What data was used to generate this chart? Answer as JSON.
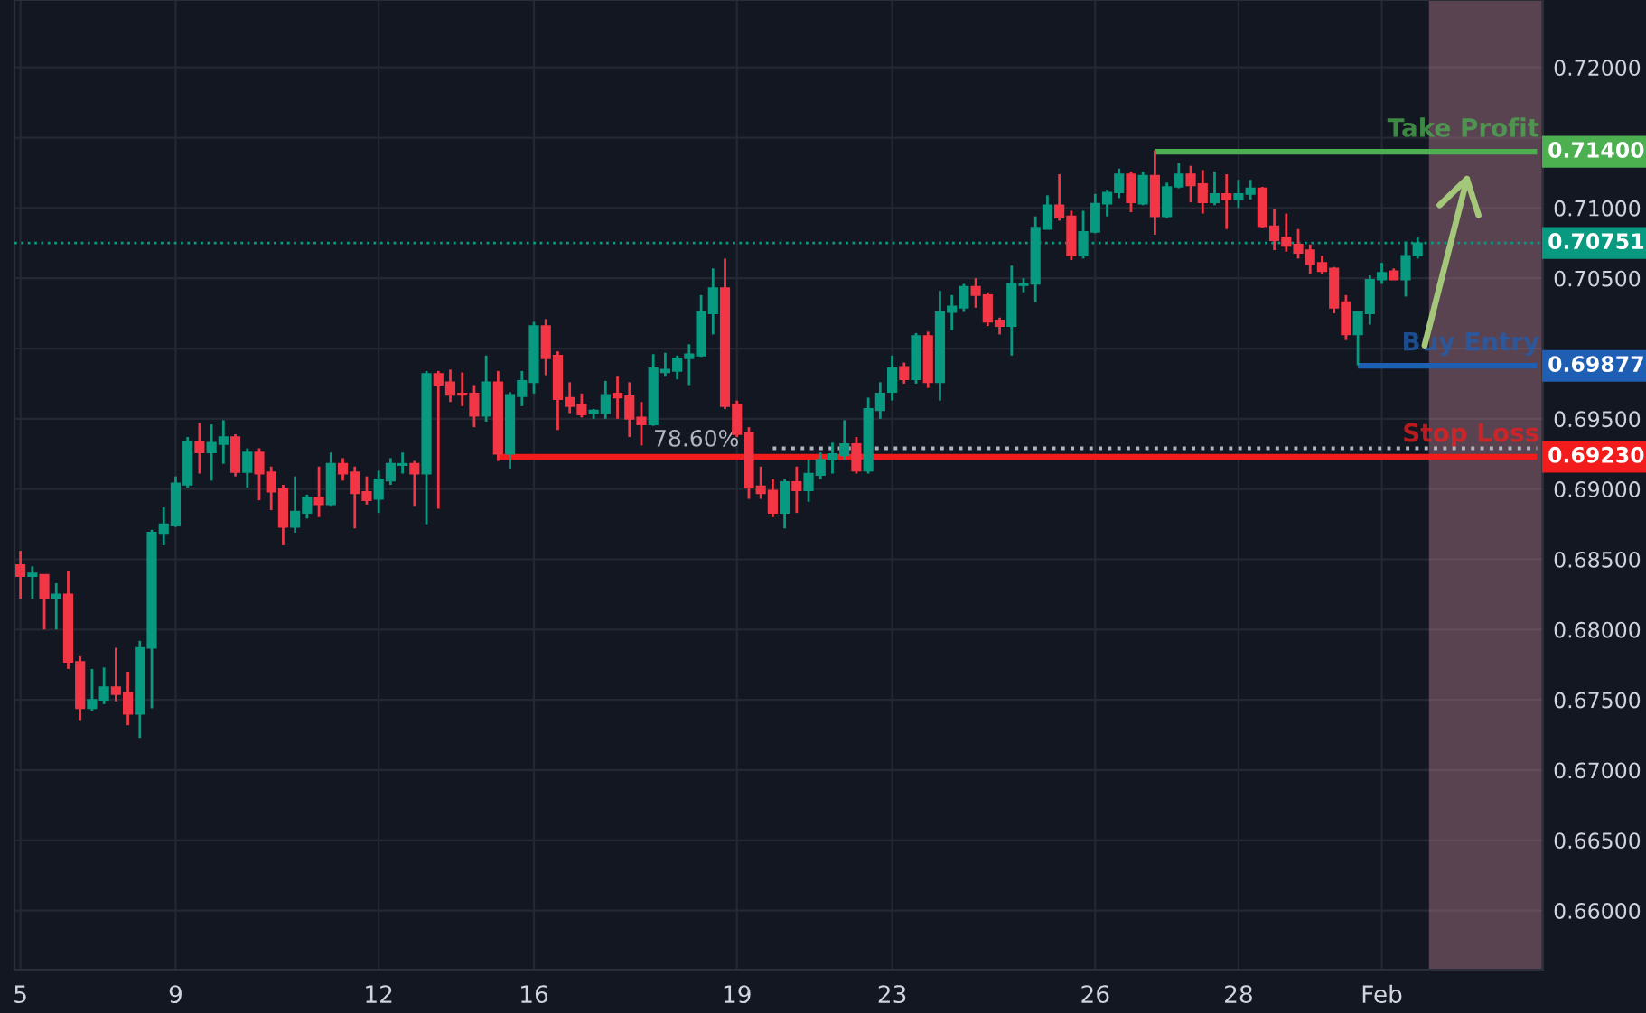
{
  "chart_data": {
    "type": "candlestick",
    "categories": [
      "5",
      null,
      null,
      null,
      null,
      null,
      null,
      null,
      null,
      null,
      null,
      null,
      null,
      "9",
      null,
      null,
      null,
      null,
      null,
      null,
      null,
      null,
      null,
      null,
      null,
      null,
      null,
      null,
      null,
      null,
      "12",
      null,
      null,
      null,
      null,
      null,
      null,
      null,
      null,
      null,
      null,
      null,
      null,
      "16",
      null,
      null,
      null,
      null,
      null,
      null,
      null,
      null,
      null,
      null,
      null,
      null,
      null,
      null,
      null,
      null,
      "19",
      null,
      null,
      null,
      null,
      null,
      null,
      null,
      null,
      null,
      null,
      null,
      null,
      "23",
      null,
      null,
      null,
      null,
      null,
      null,
      null,
      null,
      null,
      null,
      null,
      null,
      null,
      null,
      null,
      null,
      "26",
      null,
      null,
      null,
      null,
      null,
      null,
      null,
      null,
      null,
      null,
      null,
      "28",
      null,
      null,
      null,
      null,
      null,
      null,
      null,
      null,
      null,
      null,
      null,
      "Feb",
      null,
      null,
      null,
      null,
      null,
      null,
      null,
      null,
      null,
      null,
      null,
      null,
      null
    ],
    "ohlc": [
      [
        0.6846,
        0.6856,
        0.6822,
        0.6838
      ],
      [
        0.6838,
        0.6845,
        0.6822,
        0.684
      ],
      [
        0.6839,
        0.6839,
        0.68,
        0.6822
      ],
      [
        0.6822,
        0.6833,
        0.68,
        0.6825
      ],
      [
        0.6825,
        0.6842,
        0.6772,
        0.6777
      ],
      [
        0.6777,
        0.6781,
        0.6735,
        0.6744
      ],
      [
        0.6744,
        0.6772,
        0.6742,
        0.675
      ],
      [
        0.675,
        0.6773,
        0.6747,
        0.6759
      ],
      [
        0.6759,
        0.6787,
        0.6749,
        0.6754
      ],
      [
        0.6755,
        0.677,
        0.6732,
        0.674
      ],
      [
        0.674,
        0.6792,
        0.6723,
        0.6787
      ],
      [
        0.6787,
        0.6871,
        0.6744,
        0.6869
      ],
      [
        0.6868,
        0.6887,
        0.686,
        0.6875
      ],
      [
        0.6874,
        0.6909,
        0.6873,
        0.6904
      ],
      [
        0.6903,
        0.6937,
        0.6901,
        0.6934
      ],
      [
        0.6934,
        0.6947,
        0.6911,
        0.6926
      ],
      [
        0.6926,
        0.6946,
        0.6906,
        0.6933
      ],
      [
        0.6932,
        0.6949,
        0.6918,
        0.6937
      ],
      [
        0.6937,
        0.6939,
        0.6909,
        0.6912
      ],
      [
        0.6912,
        0.6929,
        0.6901,
        0.6926
      ],
      [
        0.6926,
        0.6929,
        0.6892,
        0.6911
      ],
      [
        0.6912,
        0.6916,
        0.6885,
        0.6898
      ],
      [
        0.69,
        0.6903,
        0.686,
        0.6873
      ],
      [
        0.6873,
        0.6909,
        0.6869,
        0.6884
      ],
      [
        0.6883,
        0.6896,
        0.6879,
        0.6894
      ],
      [
        0.6894,
        0.6916,
        0.688,
        0.6889
      ],
      [
        0.6889,
        0.6926,
        0.6888,
        0.6918
      ],
      [
        0.6918,
        0.6922,
        0.6906,
        0.6911
      ],
      [
        0.6912,
        0.6916,
        0.6872,
        0.6897
      ],
      [
        0.6898,
        0.6909,
        0.6889,
        0.6892
      ],
      [
        0.6893,
        0.6913,
        0.6883,
        0.6907
      ],
      [
        0.6906,
        0.6922,
        0.6903,
        0.6918
      ],
      [
        0.6917,
        0.6926,
        0.6911,
        0.6918
      ],
      [
        0.6918,
        0.692,
        0.6888,
        0.6911
      ],
      [
        0.6911,
        0.6984,
        0.6875,
        0.6982
      ],
      [
        0.6982,
        0.6984,
        0.6886,
        0.6974
      ],
      [
        0.6976,
        0.6985,
        0.6962,
        0.6967
      ],
      [
        0.6968,
        0.6983,
        0.6959,
        0.6967
      ],
      [
        0.6968,
        0.6974,
        0.6944,
        0.6952
      ],
      [
        0.6952,
        0.6995,
        0.6948,
        0.6976
      ],
      [
        0.6976,
        0.6984,
        0.692,
        0.6925
      ],
      [
        0.6925,
        0.6969,
        0.6914,
        0.6967
      ],
      [
        0.6966,
        0.6984,
        0.6959,
        0.6977
      ],
      [
        0.6976,
        0.7019,
        0.6968,
        0.7016
      ],
      [
        0.7016,
        0.7021,
        0.6981,
        0.6993
      ],
      [
        0.6995,
        0.6998,
        0.6942,
        0.6964
      ],
      [
        0.6965,
        0.6976,
        0.6954,
        0.6959
      ],
      [
        0.696,
        0.6968,
        0.6951,
        0.6953
      ],
      [
        0.6954,
        0.6957,
        0.695,
        0.6956
      ],
      [
        0.6954,
        0.6977,
        0.695,
        0.6967
      ],
      [
        0.6968,
        0.698,
        0.695,
        0.6965
      ],
      [
        0.6966,
        0.6976,
        0.6937,
        0.695
      ],
      [
        0.6951,
        0.6962,
        0.6931,
        0.6946
      ],
      [
        0.6946,
        0.6996,
        0.6945,
        0.6986
      ],
      [
        0.6983,
        0.6997,
        0.698,
        0.6985
      ],
      [
        0.6984,
        0.6995,
        0.6978,
        0.6993
      ],
      [
        0.6993,
        0.7003,
        0.6974,
        0.6996
      ],
      [
        0.6995,
        0.7038,
        0.6994,
        0.7026
      ],
      [
        0.7025,
        0.7057,
        0.701,
        0.7043
      ],
      [
        0.7043,
        0.7064,
        0.6957,
        0.6959
      ],
      [
        0.696,
        0.6963,
        0.6937,
        0.6939
      ],
      [
        0.694,
        0.6944,
        0.6893,
        0.6901
      ],
      [
        0.6902,
        0.6916,
        0.6893,
        0.6897
      ],
      [
        0.6899,
        0.6907,
        0.688,
        0.6883
      ],
      [
        0.6883,
        0.6907,
        0.6872,
        0.6905
      ],
      [
        0.6905,
        0.6916,
        0.6883,
        0.6899
      ],
      [
        0.6899,
        0.6921,
        0.6891,
        0.6911
      ],
      [
        0.691,
        0.6926,
        0.6907,
        0.6921
      ],
      [
        0.6921,
        0.6933,
        0.6911,
        0.6925
      ],
      [
        0.6924,
        0.6949,
        0.6921,
        0.6932
      ],
      [
        0.6932,
        0.6937,
        0.6911,
        0.6913
      ],
      [
        0.6913,
        0.6965,
        0.6911,
        0.6957
      ],
      [
        0.6956,
        0.6976,
        0.695,
        0.6968
      ],
      [
        0.6969,
        0.6995,
        0.6963,
        0.6986
      ],
      [
        0.6987,
        0.699,
        0.6975,
        0.6978
      ],
      [
        0.6978,
        0.7011,
        0.6975,
        0.7009
      ],
      [
        0.7009,
        0.7012,
        0.6972,
        0.6976
      ],
      [
        0.6976,
        0.7041,
        0.6963,
        0.7026
      ],
      [
        0.7026,
        0.7038,
        0.7013,
        0.703
      ],
      [
        0.7029,
        0.7046,
        0.7026,
        0.7044
      ],
      [
        0.7044,
        0.705,
        0.7029,
        0.7038
      ],
      [
        0.7038,
        0.704,
        0.7016,
        0.7019
      ],
      [
        0.702,
        0.7022,
        0.701,
        0.7016
      ],
      [
        0.7016,
        0.7059,
        0.6995,
        0.7046
      ],
      [
        0.7045,
        0.705,
        0.704,
        0.7046
      ],
      [
        0.7046,
        0.7094,
        0.7033,
        0.7086
      ],
      [
        0.7085,
        0.7109,
        0.7085,
        0.7102
      ],
      [
        0.7102,
        0.7124,
        0.7091,
        0.7093
      ],
      [
        0.7094,
        0.7098,
        0.7063,
        0.7066
      ],
      [
        0.7066,
        0.7098,
        0.7064,
        0.7083
      ],
      [
        0.7083,
        0.711,
        0.7082,
        0.7103
      ],
      [
        0.7103,
        0.7113,
        0.7094,
        0.7111
      ],
      [
        0.7111,
        0.7128,
        0.7107,
        0.7124
      ],
      [
        0.7124,
        0.7126,
        0.7097,
        0.7104
      ],
      [
        0.7103,
        0.7126,
        0.7102,
        0.7123
      ],
      [
        0.7123,
        0.7141,
        0.7081,
        0.7094
      ],
      [
        0.7094,
        0.7118,
        0.7093,
        0.7115
      ],
      [
        0.7115,
        0.7132,
        0.7114,
        0.7124
      ],
      [
        0.7124,
        0.713,
        0.7104,
        0.7116
      ],
      [
        0.7117,
        0.7127,
        0.7096,
        0.7104
      ],
      [
        0.7104,
        0.7126,
        0.7102,
        0.711
      ],
      [
        0.711,
        0.7124,
        0.7085,
        0.7106
      ],
      [
        0.7106,
        0.712,
        0.71,
        0.711
      ],
      [
        0.711,
        0.712,
        0.7106,
        0.7114
      ],
      [
        0.7114,
        0.7115,
        0.7086,
        0.7087
      ],
      [
        0.7087,
        0.7099,
        0.707,
        0.7077
      ],
      [
        0.7079,
        0.7096,
        0.7069,
        0.7073
      ],
      [
        0.7074,
        0.7085,
        0.7064,
        0.7068
      ],
      [
        0.707,
        0.7074,
        0.7053,
        0.706
      ],
      [
        0.7061,
        0.7066,
        0.7053,
        0.7055
      ],
      [
        0.7057,
        0.7058,
        0.7025,
        0.7029
      ],
      [
        0.7033,
        0.7038,
        0.7006,
        0.701
      ],
      [
        0.701,
        0.7026,
        0.6988,
        0.7026
      ],
      [
        0.7025,
        0.7052,
        0.7017,
        0.7049
      ],
      [
        0.7049,
        0.7061,
        0.7046,
        0.7054
      ],
      [
        0.7055,
        0.7057,
        0.7049,
        0.7049
      ],
      [
        0.7049,
        0.7076,
        0.7037,
        0.7066
      ],
      [
        0.7066,
        0.7079,
        0.7064,
        0.7075
      ],
      null,
      null,
      null,
      null,
      null,
      null,
      null,
      null,
      null,
      null
    ],
    "colors": [
      "#f23645",
      "#089981",
      "#f23645",
      "#089981",
      "#f23645",
      "#f23645",
      "#089981",
      "#089981",
      "#f23645",
      "#f23645",
      "#089981",
      "#089981",
      "#089981",
      "#089981",
      "#089981",
      "#f23645",
      "#089981",
      "#089981",
      "#f23645",
      "#089981",
      "#f23645",
      "#f23645",
      "#f23645",
      "#089981",
      "#089981",
      "#f23645",
      "#089981",
      "#f23645",
      "#f23645",
      "#f23645",
      "#089981",
      "#089981",
      "#089981",
      "#f23645",
      "#089981",
      "#f23645",
      "#f23645",
      "#f23645",
      "#f23645",
      "#089981",
      "#f23645",
      "#089981",
      "#089981",
      "#089981",
      "#f23645",
      "#f23645",
      "#f23645",
      "#f23645",
      "#089981",
      "#089981",
      "#f23645",
      "#f23645",
      "#f23645",
      "#089981",
      "#089981",
      "#089981",
      "#089981",
      "#089981",
      "#089981",
      "#f23645",
      "#f23645",
      "#f23645",
      "#f23645",
      "#f23645",
      "#089981",
      "#f23645",
      "#089981",
      "#089981",
      "#089981",
      "#089981",
      "#f23645",
      "#089981",
      "#089981",
      "#089981",
      "#f23645",
      "#089981",
      "#f23645",
      "#089981",
      "#089981",
      "#089981",
      "#f23645",
      "#f23645",
      "#f23645",
      "#089981",
      "#089981",
      "#089981",
      "#089981",
      "#f23645",
      "#f23645",
      "#089981",
      "#089981",
      "#089981",
      "#089981",
      "#f23645",
      "#089981",
      "#f23645",
      "#089981",
      "#089981",
      "#f23645",
      "#f23645",
      "#089981",
      "#f23645",
      "#089981",
      "#089981",
      "#f23645",
      "#f23645",
      "#f23645",
      "#f23645",
      "#f23645",
      "#f23645",
      "#f23645",
      "#f23645",
      "#089981",
      "#089981",
      "#089981",
      "#f23645",
      "#089981",
      "#089981",
      null,
      null,
      null,
      null,
      null,
      null,
      null,
      null,
      null,
      null
    ],
    "series": [
      {
        "type": "line",
        "name": "Take Profit",
        "color": "#4caf50",
        "line_style": "solid",
        "values": [
          null,
          null,
          null,
          null,
          null,
          null,
          null,
          null,
          null,
          null,
          null,
          null,
          null,
          null,
          null,
          null,
          null,
          null,
          null,
          null,
          null,
          null,
          null,
          null,
          null,
          null,
          null,
          null,
          null,
          null,
          null,
          null,
          null,
          null,
          null,
          null,
          null,
          null,
          null,
          null,
          null,
          null,
          null,
          null,
          null,
          null,
          null,
          null,
          null,
          null,
          null,
          null,
          null,
          null,
          null,
          null,
          null,
          null,
          null,
          null,
          null,
          null,
          null,
          null,
          null,
          null,
          null,
          null,
          null,
          null,
          null,
          null,
          null,
          null,
          null,
          null,
          null,
          null,
          null,
          null,
          null,
          null,
          null,
          null,
          null,
          null,
          null,
          null,
          null,
          null,
          null,
          null,
          null,
          null,
          null,
          0.714,
          0.714,
          0.714,
          0.714,
          0.714,
          0.714,
          0.714,
          0.714,
          0.714,
          0.714,
          0.714,
          0.714,
          0.714,
          0.714,
          0.714,
          0.714,
          0.714,
          0.714,
          0.714,
          0.714,
          0.714,
          0.714,
          0.714,
          0.714,
          0.714,
          0.714,
          0.714,
          0.714,
          0.714,
          0.714,
          0.714,
          0.714,
          0.714
        ]
      },
      {
        "type": "line",
        "name": "Stop Loss",
        "color": "#f21c1c",
        "line_style": "solid",
        "values": [
          null,
          null,
          null,
          null,
          null,
          null,
          null,
          null,
          null,
          null,
          null,
          null,
          null,
          null,
          null,
          null,
          null,
          null,
          null,
          null,
          null,
          null,
          null,
          null,
          null,
          null,
          null,
          null,
          null,
          null,
          null,
          null,
          null,
          null,
          null,
          null,
          null,
          null,
          null,
          null,
          0.6923,
          0.6923,
          0.6923,
          0.6923,
          0.6923,
          0.6923,
          0.6923,
          0.6923,
          0.6923,
          0.6923,
          0.6923,
          0.6923,
          0.6923,
          0.6923,
          0.6923,
          0.6923,
          0.6923,
          0.6923,
          0.6923,
          0.6923,
          0.6923,
          0.6923,
          0.6923,
          0.6923,
          0.6923,
          0.6923,
          0.6923,
          0.6923,
          0.6923,
          0.6923,
          0.6923,
          0.6923,
          0.6923,
          0.6923,
          0.6923,
          0.6923,
          0.6923,
          0.6923,
          0.6923,
          0.6923,
          0.6923,
          0.6923,
          0.6923,
          0.6923,
          0.6923,
          0.6923,
          0.6923,
          0.6923,
          0.6923,
          0.6923,
          0.6923,
          0.6923,
          0.6923,
          0.6923,
          0.6923,
          0.6923,
          0.6923,
          0.6923,
          0.6923,
          0.6923,
          0.6923,
          0.6923,
          0.6923,
          0.6923,
          0.6923,
          0.6923,
          0.6923,
          0.6923,
          0.6923,
          0.6923,
          0.6923,
          0.6923,
          0.6923,
          0.6923,
          0.6923,
          0.6923,
          0.6923,
          0.6923,
          0.6923,
          0.6923,
          0.6923,
          0.6923,
          0.6923,
          0.6923,
          0.6923,
          0.6923,
          0.6923,
          0.6923
        ]
      },
      {
        "type": "line",
        "name": "Buy Entry",
        "color": "#1e5fb4",
        "line_style": "solid",
        "values": [
          null,
          null,
          null,
          null,
          null,
          null,
          null,
          null,
          null,
          null,
          null,
          null,
          null,
          null,
          null,
          null,
          null,
          null,
          null,
          null,
          null,
          null,
          null,
          null,
          null,
          null,
          null,
          null,
          null,
          null,
          null,
          null,
          null,
          null,
          null,
          null,
          null,
          null,
          null,
          null,
          null,
          null,
          null,
          null,
          null,
          null,
          null,
          null,
          null,
          null,
          null,
          null,
          null,
          null,
          null,
          null,
          null,
          null,
          null,
          null,
          null,
          null,
          null,
          null,
          null,
          null,
          null,
          null,
          null,
          null,
          null,
          null,
          null,
          null,
          null,
          null,
          null,
          null,
          null,
          null,
          null,
          null,
          null,
          null,
          null,
          null,
          null,
          null,
          null,
          null,
          null,
          null,
          null,
          null,
          null,
          null,
          null,
          null,
          null,
          null,
          null,
          null,
          null,
          null,
          null,
          null,
          null,
          null,
          null,
          null,
          null,
          null,
          0.69877,
          0.69877,
          0.69877,
          0.69877,
          0.69877,
          0.69877,
          0.69877,
          0.69877,
          0.69877,
          0.69877,
          0.69877,
          0.69877,
          0.69877,
          0.69877,
          0.69877,
          0.69877
        ]
      },
      {
        "type": "line",
        "name": "78.60%",
        "color": "#b2b5be",
        "line_style": "dotted",
        "values": [
          null,
          null,
          null,
          null,
          null,
          null,
          null,
          null,
          null,
          null,
          null,
          null,
          null,
          null,
          null,
          null,
          null,
          null,
          null,
          null,
          null,
          null,
          null,
          null,
          null,
          null,
          null,
          null,
          null,
          null,
          null,
          null,
          null,
          null,
          null,
          null,
          null,
          null,
          null,
          null,
          null,
          null,
          null,
          null,
          null,
          null,
          null,
          null,
          null,
          null,
          null,
          null,
          null,
          null,
          null,
          null,
          null,
          null,
          null,
          null,
          null,
          null,
          null,
          0.6929,
          0.6929,
          0.6929,
          0.6929,
          0.6929,
          0.6929,
          0.6929,
          0.6929,
          0.6929,
          0.6929,
          0.6929,
          0.6929,
          0.6929,
          0.6929,
          0.6929,
          0.6929,
          0.6929,
          0.6929,
          0.6929,
          0.6929,
          0.6929,
          0.6929,
          0.6929,
          0.6929,
          0.6929,
          0.6929,
          0.6929,
          0.6929,
          0.6929,
          0.6929,
          0.6929,
          0.6929,
          0.6929,
          0.6929,
          0.6929,
          0.6929,
          0.6929,
          0.6929,
          0.6929,
          0.6929,
          0.6929,
          0.6929,
          0.6929,
          0.6929,
          0.6929,
          0.6929,
          0.6929,
          0.6929,
          0.6929,
          0.6929,
          0.6929,
          0.6929,
          0.6929,
          0.6929,
          0.6929,
          0.6929,
          0.6929,
          0.6929,
          0.6929,
          0.6929,
          0.6929,
          0.6929,
          0.6929,
          0.6929,
          0.6929
        ]
      }
    ],
    "annotations": [
      "0.71400",
      "0.69230",
      "0.69877"
    ],
    "ref_lines": [
      {
        "axis": "y",
        "value": 0.70751,
        "label": "0.70751",
        "color": "#089981",
        "line_style": "dotted"
      }
    ],
    "ylim": [
      0.6558,
      0.7248
    ],
    "yticks": [
      {
        "value": 0.66,
        "label": "0.66000"
      },
      {
        "value": 0.665,
        "label": "0.66500"
      },
      {
        "value": 0.67,
        "label": "0.67000"
      },
      {
        "value": 0.675,
        "label": "0.67500"
      },
      {
        "value": 0.68,
        "label": "0.68000"
      },
      {
        "value": 0.685,
        "label": "0.68500"
      },
      {
        "value": 0.69,
        "label": "0.69000"
      },
      {
        "value": 0.695,
        "label": "0.69500"
      },
      {
        "value": 0.7,
        "label": null
      },
      {
        "value": 0.705,
        "label": "0.70500"
      },
      {
        "value": 0.71,
        "label": "0.71000"
      },
      {
        "value": 0.715,
        "label": null
      },
      {
        "value": 0.72,
        "label": "0.72000"
      }
    ],
    "grid": true
  }
}
